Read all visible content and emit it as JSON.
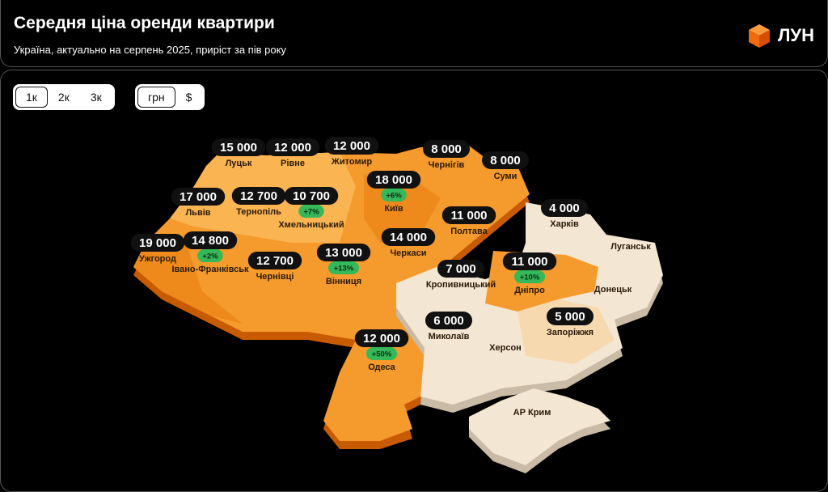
{
  "header": {
    "title": "Середня ціна оренди квартири",
    "subtitle": "Україна, актуально на серпень 2025, приріст за пів року",
    "logo": "ЛУН"
  },
  "controls": {
    "rooms": [
      "1к",
      "2к",
      "3к"
    ],
    "currency": [
      "грн",
      "$"
    ]
  },
  "regions": [
    {
      "name": "Луцьк",
      "price": "15 000"
    },
    {
      "name": "Рівне",
      "price": "12 000"
    },
    {
      "name": "Житомир",
      "price": "12 000"
    },
    {
      "name": "Чернігів",
      "price": "8 000"
    },
    {
      "name": "Суми",
      "price": "8 000"
    },
    {
      "name": "Львів",
      "price": "17 000"
    },
    {
      "name": "Тернопіль",
      "price": "12 700"
    },
    {
      "name": "Хмельницький",
      "price": "10 700",
      "growth": "+7%"
    },
    {
      "name": "Київ",
      "price": "18 000",
      "growth": "+6%"
    },
    {
      "name": "Полтава",
      "price": "11 000"
    },
    {
      "name": "Харків",
      "price": "4 000"
    },
    {
      "name": "Луганськ"
    },
    {
      "name": "Ужгород",
      "price": "19 000"
    },
    {
      "name": "Івано-Франківськ",
      "price": "14 800",
      "growth": "+2%"
    },
    {
      "name": "Черкаси",
      "price": "14 000"
    },
    {
      "name": "Чернівці",
      "price": "12 700"
    },
    {
      "name": "Вінниця",
      "price": "13 000",
      "growth": "+13%"
    },
    {
      "name": "Кропивницький",
      "price": "7 000"
    },
    {
      "name": "Дніпро",
      "price": "11 000",
      "growth": "+10%"
    },
    {
      "name": "Донецьк"
    },
    {
      "name": "Миколаїв",
      "price": "6 000"
    },
    {
      "name": "Запоріжжя",
      "price": "5 000"
    },
    {
      "name": "Одеса",
      "price": "12 000",
      "growth": "+50%"
    },
    {
      "name": "Херсон"
    },
    {
      "name": "АР Крим"
    }
  ]
}
